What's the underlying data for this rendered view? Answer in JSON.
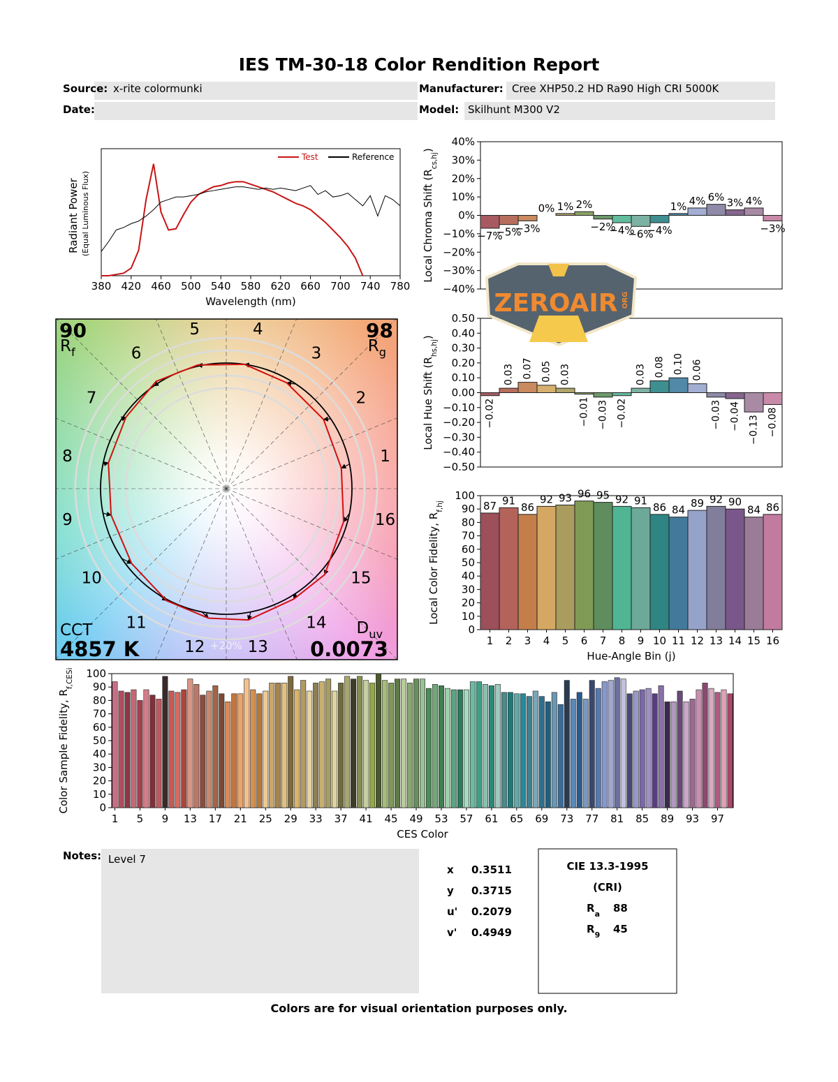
{
  "header": {
    "title": "IES TM-30-18 Color Rendition Report",
    "fields": [
      {
        "label": "Source:",
        "value": "x-rite colormunki"
      },
      {
        "label": "Manufacturer:",
        "value": "Cree XHP50.2 HD Ra90 High CRI 5000K"
      },
      {
        "label": "Date:"
      },
      {
        "label": "Model:",
        "value": "Skilhunt M300 V2"
      }
    ]
  },
  "watermark": {
    "text": "ZEROAIR",
    "sub": "ORG"
  },
  "chart_data": [
    {
      "type": "line",
      "xlabel": "Wavelength (nm)",
      "ylabel": [
        "Radiant Power",
        "(Equal Luminous Flux)"
      ],
      "x": [
        380,
        390,
        400,
        410,
        420,
        430,
        440,
        450,
        460,
        470,
        480,
        490,
        500,
        510,
        520,
        530,
        540,
        550,
        560,
        570,
        580,
        590,
        600,
        610,
        620,
        630,
        640,
        650,
        660,
        670,
        680,
        690,
        700,
        710,
        720,
        730,
        740,
        750,
        760,
        770,
        780
      ],
      "series": [
        {
          "name": "Test",
          "color": "#c81414",
          "values": [
            0,
            0,
            0.01,
            0.02,
            0.06,
            0.2,
            0.6,
            0.88,
            0.5,
            0.36,
            0.37,
            0.48,
            0.58,
            0.64,
            0.67,
            0.7,
            0.71,
            0.73,
            0.74,
            0.74,
            0.72,
            0.7,
            0.68,
            0.66,
            0.63,
            0.6,
            0.57,
            0.55,
            0.52,
            0.47,
            0.42,
            0.36,
            0.3,
            0.23,
            0.14,
            0,
            null,
            null,
            null,
            null,
            null
          ]
        },
        {
          "name": "Reference",
          "color": "#000000",
          "values": [
            0.19,
            0.27,
            0.36,
            0.38,
            0.41,
            0.43,
            0.47,
            0.52,
            0.58,
            0.6,
            0.62,
            0.62,
            0.63,
            0.64,
            0.66,
            0.67,
            0.68,
            0.69,
            0.7,
            0.7,
            0.69,
            0.68,
            0.69,
            0.68,
            0.69,
            0.68,
            0.67,
            0.69,
            0.71,
            0.64,
            0.67,
            0.62,
            0.63,
            0.65,
            0.6,
            0.55,
            0.63,
            0.47,
            0.63,
            0.6,
            0.55
          ]
        }
      ],
      "xlim": [
        380,
        780
      ],
      "xticks": [
        380,
        420,
        460,
        500,
        540,
        580,
        620,
        660,
        700,
        740,
        780
      ],
      "ylim": [
        0,
        1
      ],
      "legend": "upper right"
    },
    {
      "type": "bar",
      "ylabel": {
        "text": "Local Chroma Shift (R",
        "sub": "cs,hj",
        "end": ")"
      },
      "values": [
        -7,
        -5,
        -3,
        0,
        1,
        2,
        -2,
        -4,
        -6,
        -4,
        1,
        4,
        6,
        3,
        4,
        -3
      ],
      "value_labels": [
        "−7%",
        "−5%",
        "−3%",
        "0%",
        "1%",
        "2%",
        "−2%",
        "−4%",
        "−6%",
        "−4%",
        "1%",
        "4%",
        "6%",
        "3%",
        "4%",
        "−3%"
      ],
      "colors": [
        "#a85a62",
        "#b86e5e",
        "#c88a5e",
        "#d6b06e",
        "#b2a46a",
        "#8ca466",
        "#6c9a6a",
        "#62bc9e",
        "#7cb2a4",
        "#3e9090",
        "#5288a8",
        "#a2aed2",
        "#8e8aa8",
        "#86668f",
        "#a88aa4",
        "#c98aa9"
      ],
      "ylim": [
        -40,
        40
      ],
      "yticks": [
        {
          "value": -40,
          "label": "−40%"
        },
        {
          "value": -30,
          "label": "−30%"
        },
        {
          "value": -20,
          "label": "−20%"
        },
        {
          "value": -10,
          "label": "−10%"
        },
        {
          "value": 0,
          "label": "0%"
        },
        {
          "value": 10,
          "label": "10%"
        },
        {
          "value": 20,
          "label": "20%"
        },
        {
          "value": 30,
          "label": "30%"
        },
        {
          "value": 40,
          "label": "40%"
        }
      ]
    },
    {
      "type": "bar",
      "ylabel": {
        "text": "Local Hue Shift (R",
        "sub": "hs,hj",
        "end": ")"
      },
      "values": [
        -0.02,
        0.03,
        0.07,
        0.05,
        0.03,
        -0.01,
        -0.03,
        -0.02,
        0.03,
        0.08,
        0.1,
        0.06,
        -0.03,
        -0.04,
        -0.13,
        -0.08
      ],
      "value_labels": [
        "−0.02",
        "0.03",
        "0.07",
        "0.05",
        "0.03",
        "−0.01",
        "−0.03",
        "−0.02",
        "0.03",
        "0.08",
        "0.10",
        "0.06",
        "−0.03",
        "−0.04",
        "−0.13",
        "−0.08"
      ],
      "colors": [
        "#a85a62",
        "#b86e5e",
        "#c88a5e",
        "#d6b06e",
        "#b2a46a",
        "#8ca466",
        "#6c9a6a",
        "#62bc9e",
        "#7cb2a4",
        "#3e9090",
        "#5288a8",
        "#a2aed2",
        "#8e8aa8",
        "#86668f",
        "#a88aa4",
        "#c98aa9"
      ],
      "ylim": [
        -0.5,
        0.5
      ],
      "yticks": [
        {
          "value": -0.5,
          "label": "−0.50"
        },
        {
          "value": -0.4,
          "label": "−0.40"
        },
        {
          "value": -0.3,
          "label": "−0.30"
        },
        {
          "value": -0.2,
          "label": "−0.20"
        },
        {
          "value": -0.1,
          "label": "−0.10"
        },
        {
          "value": 0,
          "label": "0.00"
        },
        {
          "value": 0.1,
          "label": "0.10"
        },
        {
          "value": 0.2,
          "label": "0.20"
        },
        {
          "value": 0.3,
          "label": "0.30"
        },
        {
          "value": 0.4,
          "label": "0.40"
        },
        {
          "value": 0.5,
          "label": "0.50"
        }
      ]
    },
    {
      "type": "bar",
      "ylabel": {
        "text": "Local Color Fidelity, R",
        "sub": "f,hj"
      },
      "xlabel": "Hue-Angle Bin (j)",
      "categories": [
        1,
        2,
        3,
        4,
        5,
        6,
        7,
        8,
        9,
        10,
        11,
        12,
        13,
        14,
        15,
        16
      ],
      "values": [
        87,
        91,
        86,
        92,
        93,
        96,
        95,
        92,
        91,
        86,
        84,
        89,
        92,
        90,
        84,
        86
      ],
      "colors": [
        "#9d4f5a",
        "#b4635a",
        "#c47e4a",
        "#d4a862",
        "#a99c5d",
        "#7f9a55",
        "#5f8d5e",
        "#4fb593",
        "#6da999",
        "#2e8584",
        "#437a9c",
        "#95a3cb",
        "#817d9b",
        "#7a578a",
        "#9b7c98",
        "#c27b9f"
      ],
      "ylim": [
        0,
        100
      ],
      "yticks": [
        0,
        10,
        20,
        30,
        40,
        50,
        60,
        70,
        80,
        90,
        100
      ]
    },
    {
      "type": "color-vector-graphic",
      "rf": {
        "value": 90,
        "text": "R",
        "sub": "f"
      },
      "rg": {
        "value": 98,
        "text": "R",
        "sub": "g"
      },
      "cct": {
        "text": "CCT",
        "value": "4857 K"
      },
      "duv": {
        "text": "D",
        "sub": "uv",
        "value": 0.0073
      },
      "bins": [
        1,
        2,
        3,
        4,
        5,
        6,
        7,
        8,
        9,
        10,
        11,
        12,
        13,
        14,
        15,
        16
      ],
      "scale_label": "+20%"
    },
    {
      "type": "bar",
      "ylabel": {
        "text": "Color Sample Fidelity, R",
        "sub": "f,CESi"
      },
      "xlabel": "CES Color",
      "categories": [
        1,
        null,
        null,
        null,
        5,
        null,
        null,
        null,
        9,
        null,
        null,
        null,
        13,
        null,
        null,
        null,
        17,
        null,
        null,
        null,
        21,
        null,
        null,
        null,
        25,
        null,
        null,
        null,
        29,
        null,
        null,
        null,
        33,
        null,
        null,
        null,
        37,
        null,
        null,
        null,
        41,
        null,
        null,
        null,
        45,
        null,
        null,
        null,
        49,
        null,
        null,
        null,
        53,
        null,
        null,
        null,
        57,
        null,
        null,
        null,
        61,
        null,
        null,
        null,
        65,
        null,
        null,
        null,
        69,
        null,
        null,
        null,
        73,
        null,
        null,
        null,
        77,
        null,
        null,
        null,
        81,
        null,
        null,
        null,
        85,
        null,
        null,
        null,
        89,
        null,
        null,
        null,
        93,
        null,
        null,
        null,
        97,
        null,
        null
      ],
      "values": [
        94,
        87,
        86,
        88,
        80,
        88,
        84,
        81,
        98,
        87,
        86,
        88,
        96,
        92,
        84,
        87,
        91,
        85,
        79,
        85,
        85,
        96,
        88,
        85,
        87,
        93,
        93,
        93,
        98,
        88,
        95,
        87,
        93,
        94,
        96,
        87,
        93,
        98,
        96,
        98,
        95,
        93,
        100,
        95,
        93,
        96,
        96,
        93,
        96,
        96,
        89,
        92,
        91,
        89,
        88,
        88,
        88,
        94,
        94,
        92,
        91,
        92,
        86,
        86,
        85,
        85,
        83,
        87,
        83,
        79,
        86,
        77,
        95,
        81,
        86,
        81,
        95,
        89,
        94,
        95,
        97,
        96,
        85,
        87,
        88,
        89,
        85,
        91,
        79,
        79,
        87,
        79,
        81,
        88,
        93,
        89,
        86,
        88,
        85
      ],
      "colors": [
        "#c86f86",
        "#b14d5e",
        "#8f3645",
        "#c56876",
        "#a4414f",
        "#d27e8a",
        "#7f2f3b",
        "#bc5b5f",
        "#3b2a2a",
        "#c75a58",
        "#d66b5e",
        "#a9473f",
        "#d99585",
        "#b9796a",
        "#8e4d3c",
        "#c88a70",
        "#a56446",
        "#7c4a35",
        "#d98a55",
        "#c4763e",
        "#e9a46c",
        "#f2c090",
        "#d69150",
        "#b87838",
        "#f0c98e",
        "#caa66b",
        "#a48450",
        "#e0c184",
        "#7d6a40",
        "#d9b46a",
        "#b39a5e",
        "#e8d39c",
        "#8d8050",
        "#c8b070",
        "#a59c68",
        "#ddd3a0",
        "#6f6c3e",
        "#a9a76d",
        "#3c3c2a",
        "#878f4f",
        "#c8cfa0",
        "#95a848",
        "#4a5a2e",
        "#a8bc7c",
        "#7e9a56",
        "#5f7a45",
        "#b9cc98",
        "#88a870",
        "#6b8e5e",
        "#9cc098",
        "#4f8a5a",
        "#73a878",
        "#3f8050",
        "#9ed0a8",
        "#5aa680",
        "#2f7a5c",
        "#a8d8c0",
        "#70b8a0",
        "#3fa088",
        "#88c0b0",
        "#2a8a78",
        "#a0c8c0",
        "#4a8a88",
        "#1e7a78",
        "#66a8a8",
        "#2a8898",
        "#408090",
        "#78a8b8",
        "#2f7090",
        "#1e6080",
        "#6a98b0",
        "#3a6a98",
        "#2a3a50",
        "#5a88b8",
        "#2a5a90",
        "#7898c0",
        "#3a4870",
        "#5878b0",
        "#8898c8",
        "#a0a8d0",
        "#6a70a0",
        "#c0c0e0",
        "#484878",
        "#9898c8",
        "#7868a8",
        "#a090c0",
        "#583e80",
        "#8870a8",
        "#3e2850",
        "#b098c0",
        "#6a4878",
        "#c8a8c8",
        "#9a6a90",
        "#c890b0",
        "#8a4a70",
        "#d8a8c0",
        "#b05a80",
        "#e0a0b8",
        "#a84868"
      ],
      "ylim": [
        0,
        100
      ],
      "yticks": [
        0,
        10,
        20,
        30,
        40,
        50,
        60,
        70,
        80,
        90,
        100
      ]
    }
  ],
  "notes": {
    "label": "Notes:",
    "text": "Level 7"
  },
  "chromaticity": [
    {
      "label": "x",
      "value": 0.3511
    },
    {
      "label": "y",
      "value": 0.3715
    },
    {
      "label": "u'",
      "value": 0.2079
    },
    {
      "label": "v'",
      "value": 0.4949
    }
  ],
  "cri": {
    "title": "CIE 13.3-1995",
    "subtitle": "(CRI)",
    "items": [
      {
        "text": "R",
        "sub": "a",
        "value": 88
      },
      {
        "text": "R",
        "sub": "9",
        "value": 45
      }
    ]
  },
  "footer": "Colors are for visual orientation purposes only."
}
